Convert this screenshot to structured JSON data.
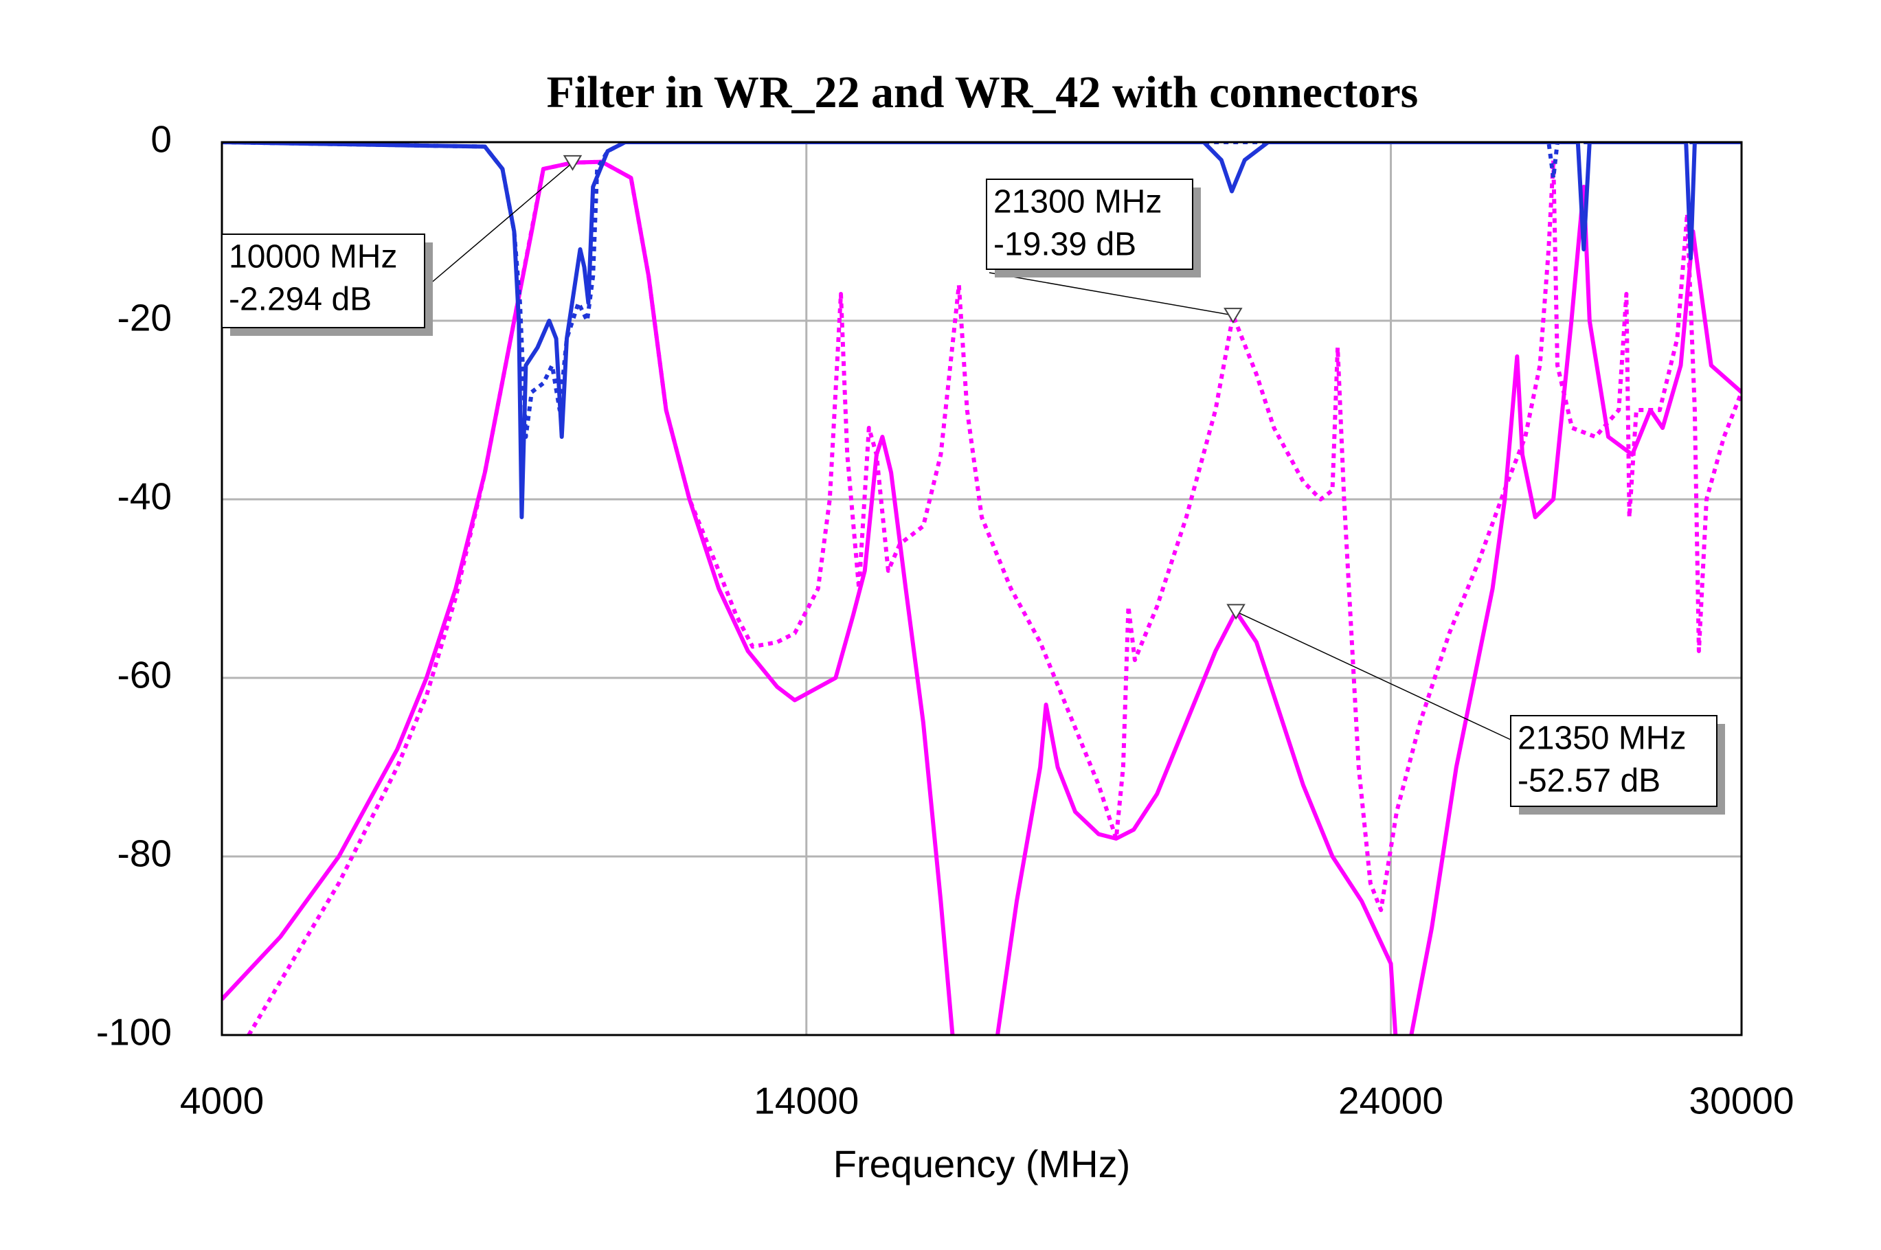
{
  "chart_data": {
    "type": "line",
    "title": "Filter in WR_22 and WR_42 with connectors",
    "x_label": "Frequency (MHz)",
    "xlim": [
      4000,
      30000
    ],
    "xticks": [
      4000,
      14000,
      24000,
      30000
    ],
    "ylim": [
      -100,
      0
    ],
    "yticks": [
      0,
      -20,
      -40,
      -60,
      -80,
      -100
    ],
    "grid": true,
    "series": [
      {
        "color": "#ff00ff",
        "style": "solid",
        "x": [
          4000,
          5000,
          6000,
          7000,
          7500,
          8000,
          8500,
          9000,
          9300,
          9500,
          10000,
          10500,
          11000,
          11300,
          11600,
          12000,
          12500,
          13000,
          13500,
          13800,
          14500,
          14800,
          15000,
          15200,
          15300,
          15450,
          15700,
          16000,
          16300,
          16500,
          16900,
          17270,
          17600,
          18000,
          18100,
          18300,
          18600,
          19000,
          19300,
          19600,
          20000,
          20500,
          21000,
          21350,
          21700,
          22000,
          22500,
          23000,
          23500,
          24000,
          24080,
          24200,
          24350,
          24700,
          25120,
          25740,
          25950,
          26160,
          26250,
          26470,
          26780,
          27090,
          27300,
          27400,
          27720,
          28130,
          28440,
          28650,
          28960,
          29170,
          29270,
          29480,
          30000
        ],
        "values": [
          -96,
          -89,
          -80,
          -68,
          -60,
          -50,
          -37,
          -20,
          -10,
          -3,
          -2.294,
          -2.2,
          -4,
          -15,
          -30,
          -40,
          -50,
          -57,
          -61,
          -62.5,
          -60,
          -53,
          -48,
          -35,
          -33,
          -37,
          -50,
          -65,
          -85,
          -100,
          null,
          -100,
          -85,
          -70,
          -63,
          -70,
          -75,
          -77.5,
          -78,
          -77,
          -73,
          -65,
          -57,
          -52.57,
          -56,
          -62,
          -72,
          -80,
          -85,
          -92,
          -100,
          null,
          -100,
          -88,
          -70,
          -50,
          -40,
          -24,
          -35,
          -42,
          -40,
          -20,
          -5,
          -20,
          -33,
          -35,
          -30,
          -32,
          -25,
          -10,
          -15,
          -25,
          -28
        ]
      },
      {
        "color": "#ff00ff",
        "style": "dotted",
        "x": [
          4460,
          5000,
          6000,
          7000,
          7500,
          8000,
          8500,
          9000,
          9500,
          10000,
          10500,
          11000,
          11300,
          11600,
          12000,
          12500,
          12800,
          13080,
          13500,
          13800,
          14200,
          14400,
          14590,
          14700,
          14900,
          15070,
          15200,
          15400,
          15600,
          16000,
          16300,
          16610,
          16750,
          17000,
          17500,
          18000,
          18500,
          19000,
          19300,
          19420,
          19510,
          19620,
          20000,
          20500,
          21000,
          21300,
          21700,
          22000,
          22500,
          22800,
          23000,
          23090,
          23200,
          23450,
          23650,
          23830,
          24100,
          24500,
          25000,
          25500,
          26000,
          26300,
          26550,
          26700,
          26780,
          26850,
          27100,
          27500,
          27900,
          28030,
          28080,
          28200,
          28600,
          28900,
          29070,
          29200,
          29270,
          29400,
          29700,
          30000
        ],
        "values": [
          -100,
          -94,
          -83,
          -70,
          -62,
          -51,
          -37,
          -20,
          -3,
          -2.3,
          -2.2,
          -4,
          -15,
          -30,
          -40,
          -48,
          -53,
          -56.5,
          -56,
          -55,
          -50,
          -40,
          -17,
          -35,
          -50,
          -32,
          -35,
          -48,
          -45,
          -43,
          -35,
          -16,
          -30,
          -42,
          -50,
          -56,
          -64,
          -72,
          -78,
          -70,
          -52,
          -58,
          -52,
          -42,
          -30,
          -19.39,
          -26,
          -32,
          -38,
          -40,
          -39,
          -23,
          -40,
          -70,
          -83,
          -86,
          -75,
          -65,
          -55,
          -47,
          -38,
          -33,
          -25,
          -12,
          -2,
          -25,
          -32,
          -33,
          -30,
          -17,
          -42,
          -30,
          -30,
          -22,
          -8,
          -30,
          -57,
          -40,
          -33,
          -28
        ]
      },
      {
        "color": "#1f35d8",
        "style": "solid",
        "x": [
          4000,
          8500,
          8800,
          9000,
          9080,
          9130,
          9200,
          9400,
          9600,
          9720,
          9815,
          9900,
          10130,
          10200,
          10270,
          10350,
          10600,
          10900,
          20800,
          21100,
          21280,
          21500,
          21900,
          27200,
          27300,
          27400,
          29050,
          29130,
          29200,
          30000
        ],
        "values": [
          0,
          -0.5,
          -3,
          -10,
          -20,
          -42,
          -25,
          -23,
          -20,
          -22,
          -33,
          -22,
          -12,
          -14,
          -18,
          -5,
          -1,
          0,
          0,
          -2,
          -5.5,
          -2,
          0,
          0,
          -12,
          0,
          0,
          -13,
          0,
          0
        ]
      },
      {
        "color": "#1f35d8",
        "style": "dotted",
        "x": [
          4000,
          8500,
          8800,
          9000,
          9100,
          9200,
          9300,
          9500,
          9650,
          9780,
          9900,
          10100,
          10250,
          10350,
          10420,
          10600,
          10900,
          26700,
          26780,
          26850,
          30000
        ],
        "values": [
          0,
          -0.5,
          -3,
          -10,
          -18,
          -33,
          -28,
          -27,
          -25,
          -30,
          -22,
          -18,
          -20,
          -15,
          -3,
          -1,
          0,
          0,
          -4,
          0,
          0
        ]
      }
    ],
    "annotations": [
      {
        "x": 10000,
        "y": -2.294,
        "lines": [
          "10000 MHz",
          "-2.294 dB"
        ]
      },
      {
        "x": 21300,
        "y": -19.39,
        "lines": [
          "21300 MHz",
          "-19.39 dB"
        ]
      },
      {
        "x": 21350,
        "y": -52.57,
        "lines": [
          "21350 MHz",
          "-52.57 dB"
        ]
      }
    ]
  }
}
